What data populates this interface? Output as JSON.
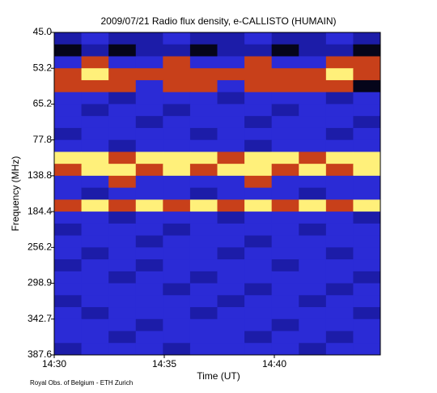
{
  "chart_data": {
    "type": "heatmap",
    "title": "2009/07/21  Radio flux density, e-CALLISTO (HUMAIN)",
    "x_label": "Time (UT)",
    "y_label": "Frequency (MHz)",
    "footer": "Royal Obs. of Belgium - ETH Zurich",
    "x_categories": [
      "14:30",
      "14:35",
      "14:40"
    ],
    "y_categories": [
      "45.0",
      "53.2",
      "65.2",
      "77.8",
      "138.8",
      "184.4",
      "256.2",
      "298.9",
      "342.7",
      "387.6"
    ],
    "colors": [
      "#05051a",
      "#1c1ca8",
      "#2b2bd6",
      "#c8401a",
      "#fff07a"
    ],
    "values": [
      [
        1,
        2,
        1,
        1,
        2,
        1,
        1,
        2,
        1,
        1,
        2,
        1
      ],
      [
        0,
        1,
        0,
        1,
        1,
        0,
        1,
        1,
        0,
        1,
        1,
        0
      ],
      [
        2,
        3,
        2,
        2,
        3,
        2,
        2,
        3,
        2,
        2,
        3,
        3
      ],
      [
        3,
        4,
        3,
        3,
        3,
        3,
        3,
        3,
        3,
        3,
        4,
        3
      ],
      [
        3,
        3,
        3,
        2,
        3,
        3,
        2,
        3,
        3,
        3,
        3,
        0
      ],
      [
        2,
        2,
        1,
        2,
        2,
        2,
        1,
        2,
        2,
        2,
        1,
        2
      ],
      [
        2,
        1,
        2,
        2,
        1,
        2,
        2,
        2,
        1,
        2,
        2,
        2
      ],
      [
        2,
        2,
        2,
        1,
        2,
        2,
        2,
        1,
        2,
        2,
        2,
        1
      ],
      [
        1,
        2,
        2,
        2,
        2,
        1,
        2,
        2,
        2,
        2,
        1,
        2
      ],
      [
        2,
        2,
        1,
        2,
        2,
        2,
        2,
        1,
        2,
        2,
        2,
        2
      ],
      [
        4,
        4,
        3,
        4,
        4,
        4,
        3,
        4,
        4,
        3,
        4,
        4
      ],
      [
        3,
        4,
        4,
        3,
        4,
        3,
        4,
        4,
        3,
        4,
        3,
        4
      ],
      [
        2,
        2,
        3,
        2,
        2,
        2,
        2,
        3,
        2,
        2,
        2,
        2
      ],
      [
        2,
        1,
        2,
        2,
        2,
        1,
        2,
        2,
        2,
        1,
        2,
        2
      ],
      [
        3,
        4,
        3,
        4,
        3,
        4,
        3,
        4,
        3,
        4,
        3,
        4
      ],
      [
        2,
        2,
        1,
        2,
        2,
        2,
        1,
        2,
        2,
        2,
        2,
        1
      ],
      [
        1,
        2,
        2,
        2,
        1,
        2,
        2,
        2,
        2,
        1,
        2,
        2
      ],
      [
        2,
        2,
        2,
        1,
        2,
        2,
        2,
        1,
        2,
        2,
        2,
        2
      ],
      [
        2,
        1,
        2,
        2,
        2,
        2,
        1,
        2,
        2,
        2,
        1,
        2
      ],
      [
        1,
        2,
        2,
        1,
        2,
        2,
        2,
        2,
        1,
        2,
        2,
        2
      ],
      [
        2,
        2,
        1,
        2,
        2,
        1,
        2,
        2,
        2,
        2,
        2,
        1
      ],
      [
        2,
        2,
        2,
        2,
        1,
        2,
        2,
        1,
        2,
        2,
        1,
        2
      ],
      [
        1,
        2,
        2,
        2,
        2,
        2,
        1,
        2,
        2,
        1,
        2,
        2
      ],
      [
        2,
        1,
        2,
        2,
        2,
        1,
        2,
        2,
        2,
        2,
        2,
        1
      ],
      [
        2,
        2,
        2,
        1,
        2,
        2,
        2,
        2,
        1,
        2,
        2,
        2
      ],
      [
        2,
        2,
        1,
        2,
        2,
        2,
        2,
        1,
        2,
        2,
        1,
        2
      ],
      [
        1,
        2,
        2,
        2,
        1,
        2,
        2,
        2,
        2,
        1,
        2,
        2
      ]
    ]
  }
}
